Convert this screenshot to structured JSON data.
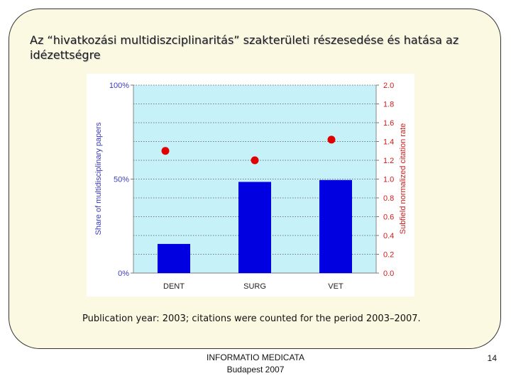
{
  "slide": {
    "title": "Az “hivatkozási multidiszciplinaritás” szakterületi részesedése és hatása az idézettségre",
    "caption": "Publication year: 2003; citations were counted for the period 2003–2007.",
    "footer_line1": "INFORMATIO MEDICATA",
    "footer_line2": "Budapest 2007",
    "page_number": "14"
  },
  "colors": {
    "bar": "#0000e0",
    "dot": "#e00000",
    "plot_bg": "#c6f1f8",
    "left_axis_text": "#3b3bb8",
    "right_axis_text": "#d11a1a"
  },
  "chart_data": {
    "type": "bar",
    "categories": [
      "DENT",
      "SURG",
      "VET"
    ],
    "series": [
      {
        "axis": "left",
        "kind": "bar",
        "values": [
          15.5,
          48.5,
          49.5
        ]
      },
      {
        "axis": "right",
        "kind": "scatter",
        "values": [
          1.3,
          1.2,
          1.42
        ]
      }
    ],
    "ylabel": "Share of multidisciplinary papers",
    "y2label": "Subfield normalized citation rate",
    "ylim": [
      0,
      100
    ],
    "y2lim": [
      0,
      2.0
    ],
    "yticks": [
      "0%",
      "50%",
      "100%"
    ],
    "y2ticks": [
      "0.0",
      "0.2",
      "0.4",
      "0.6",
      "0.8",
      "1.0",
      "1.2",
      "1.4",
      "1.6",
      "1.8",
      "2.0"
    ],
    "grid": true
  }
}
